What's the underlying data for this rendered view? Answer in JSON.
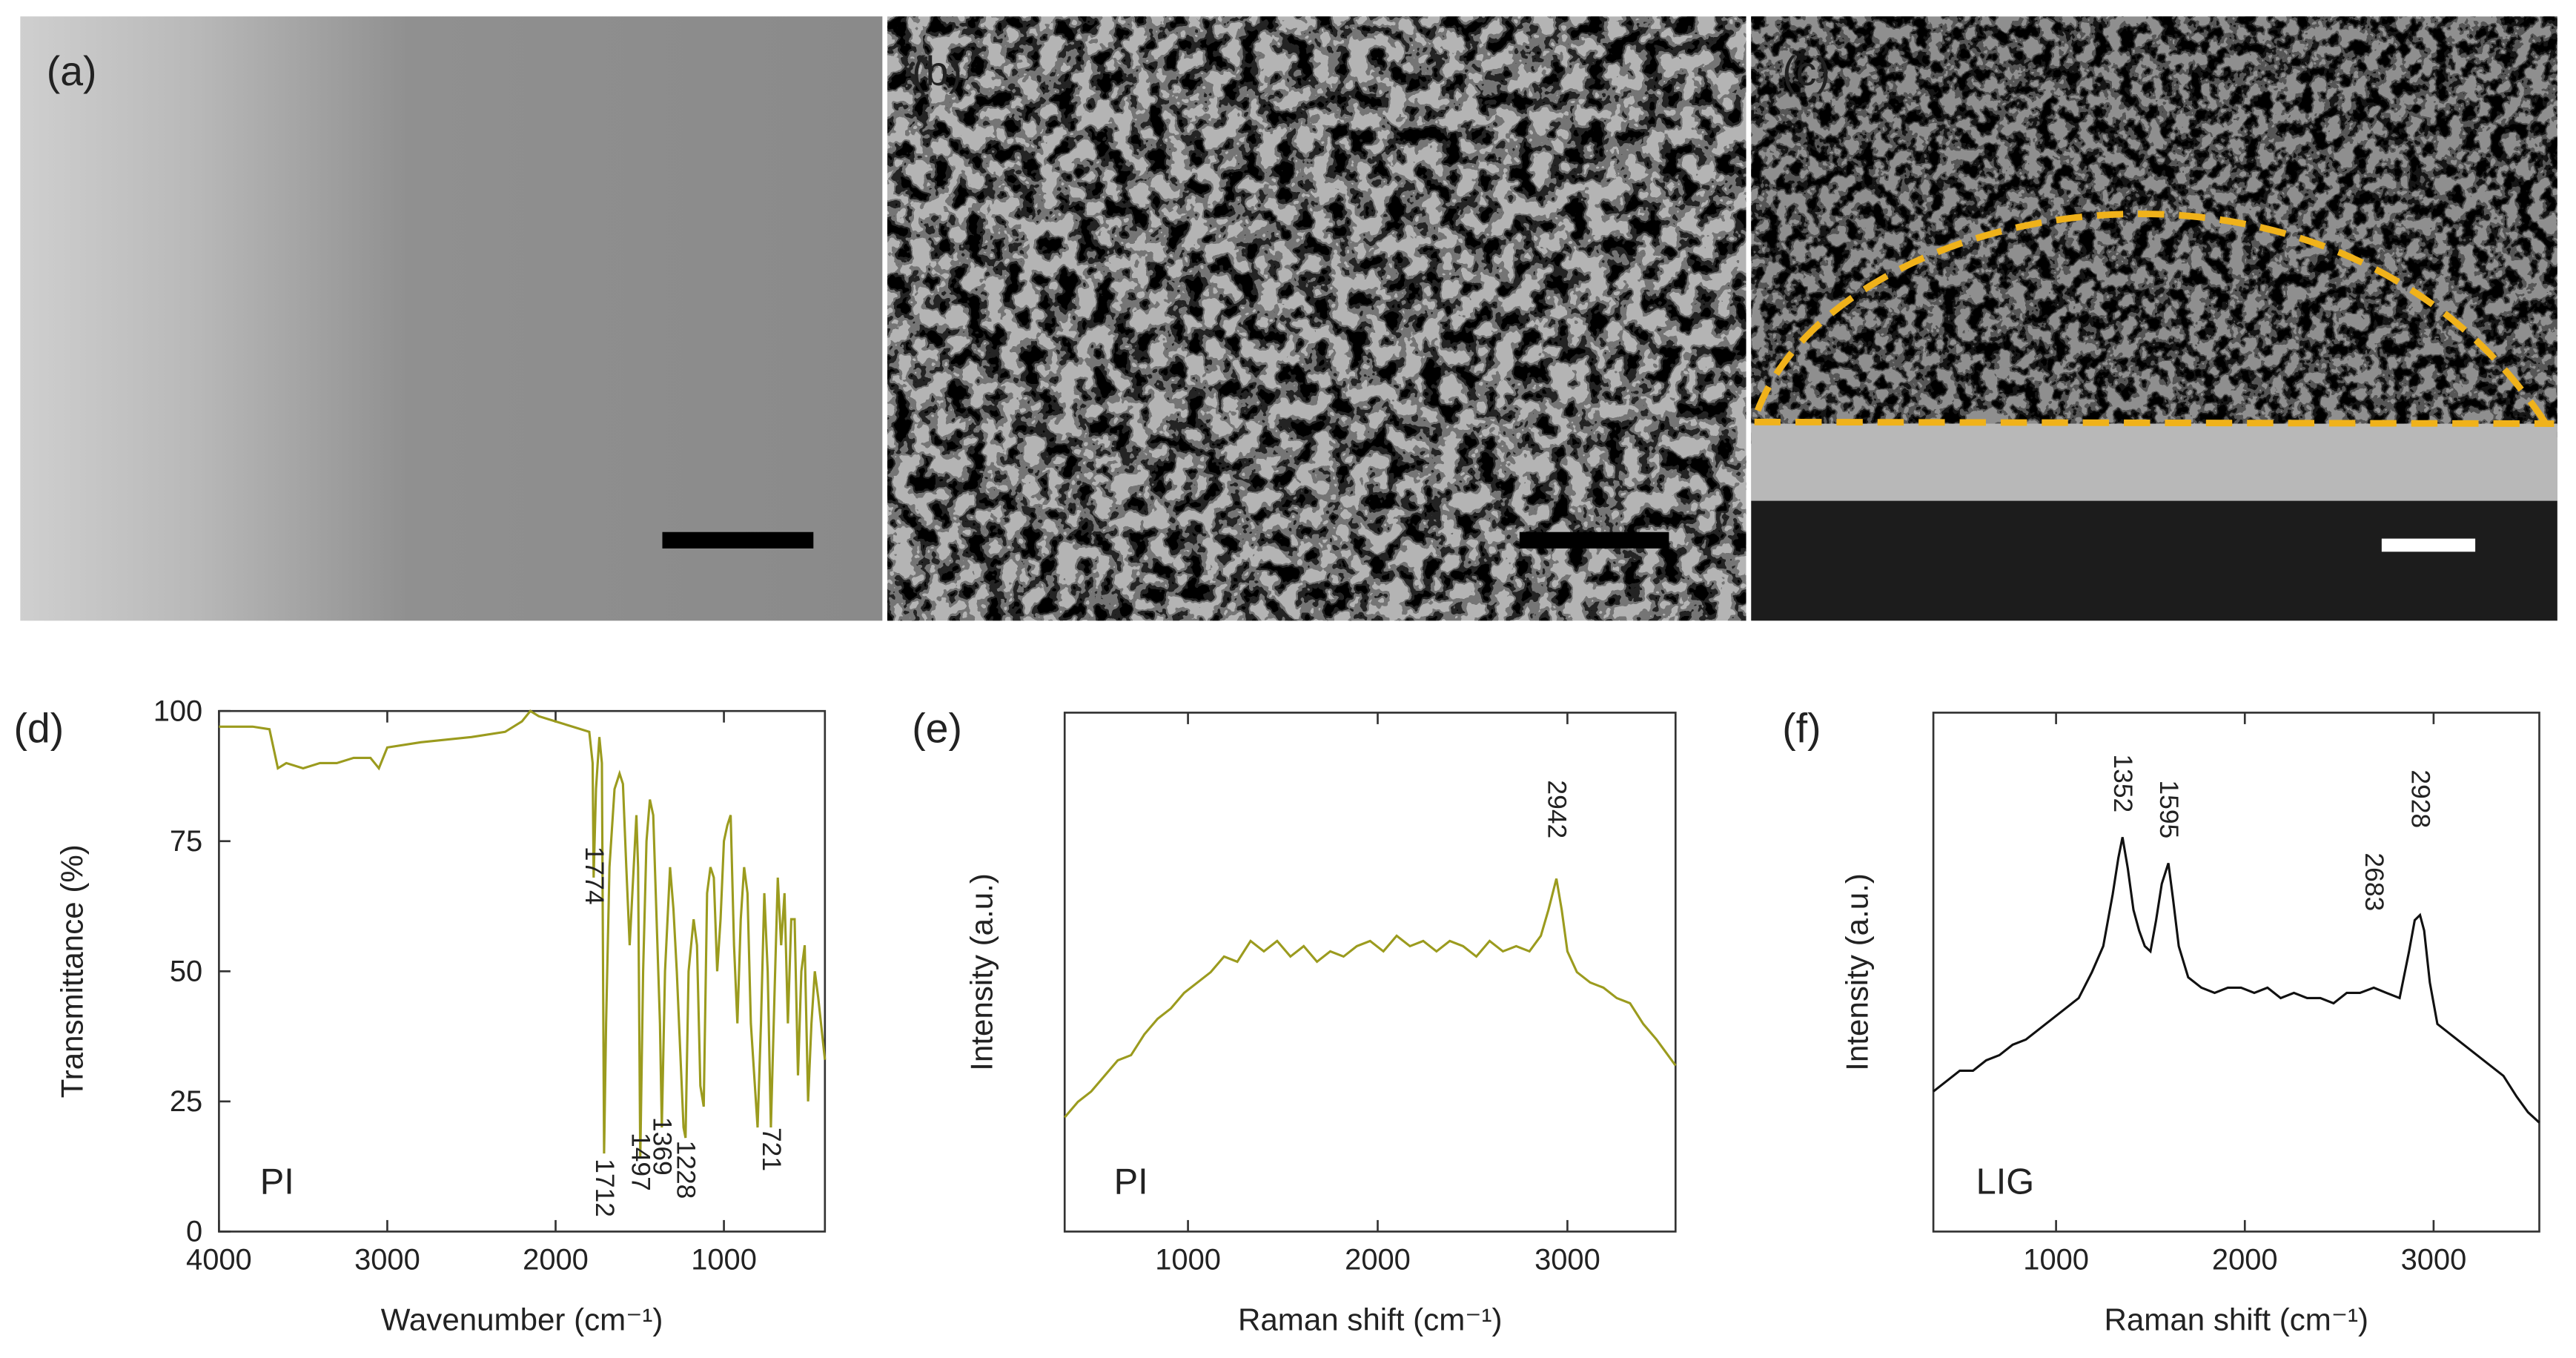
{
  "panel_labels": [
    "(a)",
    "(b)",
    "(c)",
    "(d)",
    "(e)",
    "(f)"
  ],
  "chart_data": [
    {
      "type": "line",
      "x_label": "Wavenumber (cm⁻¹)",
      "y_label": "Transmittance (%)",
      "xlim": [
        4000,
        400
      ],
      "xticks": [
        4000,
        3000,
        2000,
        1000
      ],
      "ylim": [
        0,
        100
      ],
      "yticks": [
        0,
        25,
        50,
        75,
        100
      ],
      "x": [
        4000,
        3800,
        3700,
        3650,
        3600,
        3500,
        3400,
        3300,
        3200,
        3100,
        3050,
        3000,
        2800,
        2500,
        2300,
        2200,
        2150,
        2100,
        2000,
        1900,
        1800,
        1780,
        1774,
        1760,
        1740,
        1725,
        1712,
        1700,
        1680,
        1650,
        1620,
        1600,
        1580,
        1560,
        1520,
        1510,
        1497,
        1480,
        1460,
        1440,
        1420,
        1400,
        1380,
        1369,
        1350,
        1320,
        1300,
        1280,
        1260,
        1240,
        1228,
        1210,
        1180,
        1160,
        1140,
        1120,
        1100,
        1080,
        1060,
        1040,
        1020,
        1000,
        980,
        960,
        940,
        920,
        900,
        880,
        860,
        840,
        820,
        800,
        780,
        760,
        740,
        721,
        700,
        680,
        660,
        640,
        620,
        600,
        580,
        560,
        540,
        520,
        500,
        480,
        460,
        440,
        400
      ],
      "series": [
        {
          "name": "PI",
          "color": "#9b9b1e",
          "values": [
            97,
            97,
            96.5,
            89,
            90,
            89,
            90,
            90,
            91,
            91,
            89,
            93,
            94,
            95,
            96,
            98,
            100,
            99,
            98,
            97,
            96,
            90,
            68,
            85,
            95,
            90,
            15,
            40,
            70,
            85,
            88,
            86,
            70,
            55,
            80,
            70,
            14,
            50,
            75,
            83,
            80,
            60,
            40,
            20,
            50,
            70,
            62,
            50,
            35,
            20,
            18,
            50,
            60,
            55,
            28,
            24,
            65,
            70,
            68,
            50,
            60,
            75,
            78,
            80,
            55,
            40,
            60,
            70,
            65,
            40,
            30,
            20,
            40,
            65,
            50,
            20,
            45,
            68,
            55,
            65,
            40,
            60,
            60,
            30,
            50,
            55,
            25,
            40,
            50,
            45,
            33
          ]
        }
      ],
      "annotations": [
        {
          "text": "1774",
          "x": 1774,
          "y": 74
        },
        {
          "text": "1712",
          "x": 1712,
          "y": 14
        },
        {
          "text": "1497",
          "x": 1497,
          "y": 19
        },
        {
          "text": "1369",
          "x": 1369,
          "y": 22
        },
        {
          "text": "1228",
          "x": 1228,
          "y": 17.5
        },
        {
          "text": "721",
          "x": 721,
          "y": 20
        }
      ]
    },
    {
      "type": "line",
      "x_label": "Raman shift (cm⁻¹)",
      "y_label": "Intensity (a.u.)",
      "xlim": [
        350,
        3570
      ],
      "xticks": [
        1000,
        2000,
        3000
      ],
      "ylim": [
        0,
        100
      ],
      "x": [
        350,
        420,
        490,
        560,
        630,
        700,
        770,
        840,
        910,
        980,
        1050,
        1120,
        1190,
        1260,
        1330,
        1400,
        1470,
        1540,
        1610,
        1680,
        1750,
        1820,
        1890,
        1960,
        2030,
        2100,
        2170,
        2240,
        2310,
        2380,
        2450,
        2520,
        2590,
        2660,
        2730,
        2800,
        2860,
        2900,
        2942,
        2970,
        3000,
        3050,
        3120,
        3190,
        3260,
        3330,
        3400,
        3470,
        3570
      ],
      "series": [
        {
          "name": "PI",
          "color": "#9b9b1e",
          "values": [
            22,
            25,
            27,
            30,
            33,
            34,
            38,
            41,
            43,
            46,
            48,
            50,
            53,
            52,
            56,
            54,
            56,
            53,
            55,
            52,
            54,
            53,
            55,
            56,
            54,
            57,
            55,
            56,
            54,
            56,
            55,
            53,
            56,
            54,
            55,
            54,
            57,
            62,
            68,
            62,
            54,
            50,
            48,
            47,
            45,
            44,
            40,
            37,
            32
          ]
        }
      ],
      "annotations": [
        {
          "text": "2942",
          "x": 2942,
          "y": 87
        }
      ]
    },
    {
      "type": "line",
      "x_label": "Raman shift (cm⁻¹)",
      "y_label": "Intensity (a.u.)",
      "xlim": [
        350,
        3560
      ],
      "xticks": [
        1000,
        2000,
        3000
      ],
      "ylim": [
        0,
        100
      ],
      "x": [
        350,
        420,
        490,
        560,
        630,
        700,
        770,
        840,
        910,
        980,
        1050,
        1120,
        1190,
        1250,
        1300,
        1330,
        1352,
        1380,
        1410,
        1440,
        1470,
        1500,
        1530,
        1560,
        1595,
        1620,
        1650,
        1700,
        1770,
        1840,
        1910,
        1980,
        2050,
        2120,
        2190,
        2260,
        2330,
        2400,
        2470,
        2540,
        2610,
        2683,
        2750,
        2820,
        2870,
        2900,
        2928,
        2950,
        2980,
        3020,
        3090,
        3160,
        3230,
        3300,
        3370,
        3440,
        3500,
        3560
      ],
      "series": [
        {
          "name": "LIG",
          "color": "#111111",
          "values": [
            27,
            29,
            31,
            31,
            33,
            34,
            36,
            37,
            39,
            41,
            43,
            45,
            50,
            55,
            65,
            72,
            76,
            70,
            62,
            58,
            55,
            54,
            60,
            67,
            71,
            64,
            55,
            49,
            47,
            46,
            47,
            47,
            46,
            47,
            45,
            46,
            45,
            45,
            44,
            46,
            46,
            47,
            46,
            45,
            54,
            60,
            61,
            58,
            48,
            40,
            38,
            36,
            34,
            32,
            30,
            26,
            23,
            21
          ]
        }
      ],
      "annotations": [
        {
          "text": "1352",
          "x": 1352,
          "y": 92
        },
        {
          "text": "1595",
          "x": 1595,
          "y": 87
        },
        {
          "text": "2683",
          "x": 2683,
          "y": 73
        },
        {
          "text": "2928",
          "x": 2928,
          "y": 89
        }
      ]
    }
  ]
}
